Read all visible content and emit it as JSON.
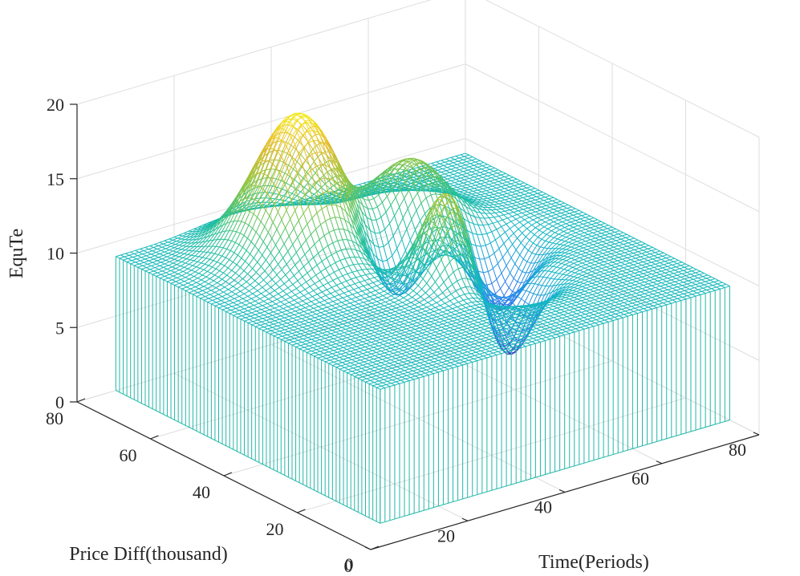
{
  "chart_data": {
    "type": "mesh3d",
    "title": "",
    "xlabel": "Time(Periods)",
    "ylabel": "Price Diff(thousand)",
    "zlabel": "EquTe",
    "xlim": [
      0,
      80
    ],
    "ylim": [
      0,
      80
    ],
    "zlim": [
      0,
      20
    ],
    "xticks": [
      "0",
      "20",
      "40",
      "60",
      "80"
    ],
    "xtick_values": [
      0,
      20,
      40,
      60,
      80
    ],
    "yticks": [
      "0",
      "20",
      "40",
      "60",
      "80"
    ],
    "ytick_values": [
      0,
      20,
      40,
      60,
      80
    ],
    "zticks": [
      "0",
      "5",
      "10",
      "15",
      "20"
    ],
    "ztick_values": [
      0,
      5,
      10,
      15,
      20
    ],
    "grid": true,
    "curtain_base": 0,
    "surface": {
      "grid_range": [
        8,
        80
      ],
      "grid_points": 73,
      "baseline": 9,
      "peaks": [
        {
          "x": 32,
          "y": 62,
          "amplitude": 9.5,
          "sigma": 7.5
        },
        {
          "x": 46,
          "y": 39,
          "amplitude": 6.5,
          "sigma": 4.5
        },
        {
          "x": 54,
          "y": 60,
          "amplitude": 4.5,
          "sigma": 6
        }
      ],
      "dips": [
        {
          "x": 44,
          "y": 52,
          "amplitude": 4,
          "sigma": 4.5
        },
        {
          "x": 53,
          "y": 34,
          "amplitude": 6,
          "sigma": 4.5
        },
        {
          "x": 61,
          "y": 46,
          "amplitude": 4.5,
          "sigma": 4.5
        }
      ],
      "colormap": [
        "#3e26a8",
        "#2f7ff2",
        "#12b5ca",
        "#2ac18f",
        "#91c63f",
        "#e7ba2d",
        "#f9fb0e"
      ],
      "color_range": [
        3,
        19
      ],
      "curtain_color": "#22b7a8"
    }
  }
}
